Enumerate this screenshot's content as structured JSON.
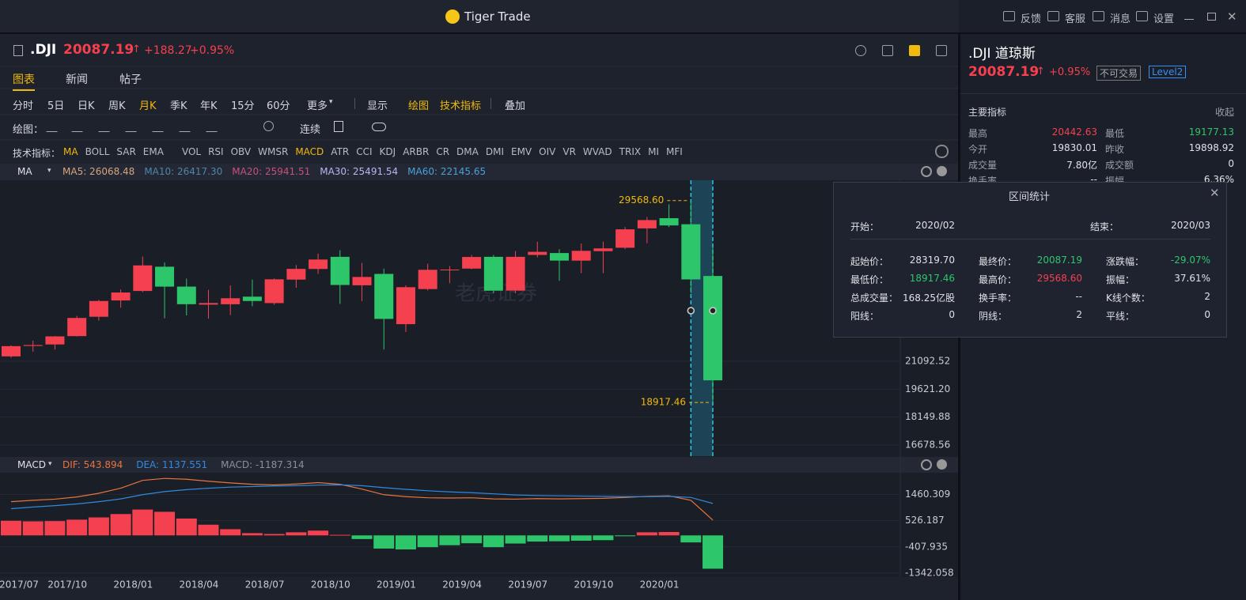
{
  "window": {
    "title": "Tiger Trade",
    "actions": [
      "反馈",
      "客服",
      "消息",
      "设置"
    ]
  },
  "quote": {
    "symbol": ".DJI",
    "price": "20087.19",
    "change": "+188.27",
    "change_pct": "+0.95%"
  },
  "tabs": [
    "图表",
    "新闻",
    "帖子"
  ],
  "selected_tab": 0,
  "periods": [
    "分时",
    "5日",
    "日K",
    "周K",
    "月K",
    "季K",
    "年K",
    "15分",
    "60分",
    "更多"
  ],
  "selected_period": 4,
  "view_menu": [
    "显示",
    "绘图",
    "技术指标",
    "叠加"
  ],
  "draw_tools": {
    "label": "绘图：",
    "continuous": "连续"
  },
  "indicators": {
    "label": "技术指标：",
    "items": [
      "MA",
      "BOLL",
      "SAR",
      "EMA",
      "VOL",
      "RSI",
      "OBV",
      "WMSR",
      "MACD",
      "ATR",
      "CCI",
      "KDJ",
      "ARBR",
      "CR",
      "DMA",
      "DMI",
      "EMV",
      "OIV",
      "VR",
      "WVAD",
      "TRIX",
      "MI",
      "MFI"
    ],
    "active": [
      0,
      8
    ]
  },
  "ma_legend": {
    "name": "MA",
    "items": [
      {
        "label": "MA5: 26068.48",
        "color": "#d6a57c"
      },
      {
        "label": "MA10: 26417.30",
        "color": "#4e86a8"
      },
      {
        "label": "MA20: 25941.51",
        "color": "#c8507a"
      },
      {
        "label": "MA30: 25491.54",
        "color": "#b9b6f0"
      },
      {
        "label": "MA60: 22145.65",
        "color": "#4aa0d8"
      }
    ]
  },
  "macd_legend": {
    "name": "MACD",
    "items": [
      {
        "label": "DIF: 543.894",
        "color": "#e8743b"
      },
      {
        "label": "DEA: 1137.551",
        "color": "#2f8ae0"
      },
      {
        "label": "MACD: -1187.314",
        "color": "#8a8f99"
      }
    ]
  },
  "watermark": "老虎证券",
  "chart_data": [
    {
      "type": "candlestick",
      "up_color": "#f5404f",
      "down_color": "#2ec66a",
      "categories": [
        "2017/07",
        null,
        null,
        "2017/10",
        null,
        null,
        "2018/01",
        null,
        null,
        "2018/04",
        null,
        null,
        "2018/07",
        null,
        null,
        "2018/10",
        null,
        null,
        "2019/01",
        null,
        null,
        "2019/04",
        null,
        null,
        "2019/07",
        null,
        null,
        "2019/10",
        null,
        null,
        "2020/01",
        null,
        null
      ],
      "open": [
        21350,
        21900,
        21980,
        22420,
        23440,
        24300,
        24800,
        26080,
        25030,
        24080,
        24100,
        24500,
        24160,
        25400,
        25960,
        26600,
        25100,
        25700,
        23050,
        24900,
        25900,
        25980,
        26600,
        24820,
        26700,
        26800,
        26400,
        26900,
        27080,
        28100,
        28640,
        28319.7,
        25590
      ],
      "high": [
        21930,
        22180,
        22420,
        23485,
        24330,
        24880,
        26617,
        26307,
        25450,
        24860,
        25090,
        25400,
        25460,
        26170,
        26770,
        26950,
        26280,
        25980,
        25100,
        26240,
        26110,
        26700,
        26700,
        26910,
        27400,
        27000,
        27300,
        27400,
        28170,
        28700,
        29373,
        29568.6,
        27100
      ],
      "low": [
        21280,
        21600,
        21710,
        22400,
        23240,
        23920,
        24740,
        23360,
        23510,
        23340,
        23530,
        24000,
        24070,
        24970,
        25700,
        24120,
        24270,
        21710,
        22640,
        24830,
        25210,
        25950,
        24680,
        24680,
        26570,
        25340,
        25740,
        25740,
        27010,
        27320,
        28170,
        24680,
        18917.46
      ],
      "close": [
        21891,
        21948,
        22405,
        23377,
        24272,
        24719,
        26149,
        25029,
        24103,
        24163,
        24416,
        24271,
        25415,
        25965,
        26458,
        25116,
        25538,
        23327,
        24999,
        25916,
        25929,
        26593,
        24815,
        26600,
        26864,
        26403,
        26917,
        27046,
        28051,
        28538,
        28256,
        25409,
        20087.19
      ],
      "ylim": [
        16090,
        30640
      ],
      "yticks": [
        21092.52,
        {
          "value": 19621.2,
          "label": "19621.20"
        },
        18149.88,
        16678.56
      ],
      "grid": true,
      "annotations": [
        {
          "value": 29568.6,
          "label": "29568.60",
          "kind": "high"
        },
        {
          "value": 18917.46,
          "label": "18917.46",
          "kind": "low"
        }
      ]
    },
    {
      "type": "macd",
      "ylim": [
        -1485,
        2232
      ],
      "yticks": [
        1460.309,
        526.187,
        -407.935,
        -1342.058
      ],
      "series": [
        {
          "name": "MACD",
          "values": [
            520,
            500,
            510,
            560,
            640,
            760,
            920,
            840,
            600,
            380,
            220,
            80,
            50,
            110,
            170,
            20,
            -130,
            -470,
            -500,
            -420,
            -350,
            -280,
            -420,
            -290,
            -220,
            -210,
            -190,
            -170,
            -30,
            110,
            120,
            -250,
            -1187.314
          ]
        },
        {
          "name": "DIF",
          "color": "#e8743b",
          "values": [
            1200,
            1250,
            1290,
            1370,
            1500,
            1680,
            1960,
            2030,
            2000,
            1930,
            1870,
            1820,
            1800,
            1830,
            1880,
            1820,
            1650,
            1450,
            1380,
            1340,
            1330,
            1340,
            1300,
            1290,
            1310,
            1300,
            1310,
            1320,
            1350,
            1390,
            1410,
            1250,
            543.894
          ]
        },
        {
          "name": "DEA",
          "color": "#2f8ae0",
          "values": [
            950,
            1010,
            1060,
            1120,
            1200,
            1300,
            1450,
            1560,
            1630,
            1680,
            1720,
            1740,
            1760,
            1770,
            1790,
            1800,
            1770,
            1700,
            1640,
            1590,
            1550,
            1520,
            1480,
            1440,
            1420,
            1410,
            1400,
            1390,
            1380,
            1380,
            1390,
            1350,
            1137.551
          ]
        }
      ]
    }
  ],
  "side": {
    "name": ".DJI 道琼斯",
    "price": "20087.19",
    "change_pct": "+0.95%",
    "badges": [
      "不可交易",
      "Level2"
    ],
    "section": "主要指标",
    "collapse": "收起",
    "rows": [
      [
        {
          "label": "最高",
          "value": "20442.63",
          "color": "#f5404f"
        },
        {
          "label": "最低",
          "value": "19177.13",
          "color": "#2ec66a"
        }
      ],
      [
        {
          "label": "今开",
          "value": "19830.01"
        },
        {
          "label": "昨收",
          "value": "19898.92"
        }
      ],
      [
        {
          "label": "成交量",
          "value": "7.80亿"
        },
        {
          "label": "成交额",
          "value": "0"
        }
      ],
      [
        {
          "label": "换手率",
          "value": "--"
        },
        {
          "label": "振幅",
          "value": "6.36%"
        }
      ]
    ]
  },
  "popup": {
    "title": "区间统计",
    "start_label": "开始：",
    "start": "2020/02",
    "end_label": "结束：",
    "end": "2020/03",
    "rows": [
      [
        {
          "label": "起始价：",
          "value": "28319.70"
        },
        {
          "label": "最终价：",
          "value": "20087.19",
          "color": "#2ec66a"
        },
        {
          "label": "涨跌幅：",
          "value": "-29.07%",
          "color": "#2ec66a"
        }
      ],
      [
        {
          "label": "最低价：",
          "value": "18917.46",
          "color": "#2ec66a"
        },
        {
          "label": "最高价：",
          "value": "29568.60",
          "color": "#f5404f"
        },
        {
          "label": "振幅：",
          "value": "37.61%"
        }
      ],
      [
        {
          "label": "总成交量：",
          "value": "168.25亿股"
        },
        {
          "label": "换手率：",
          "value": "--"
        },
        {
          "label": "K线个数：",
          "value": "2"
        }
      ],
      [
        {
          "label": "阳线：",
          "value": "0"
        },
        {
          "label": "阴线：",
          "value": "2"
        },
        {
          "label": "平线：",
          "value": "0"
        }
      ]
    ]
  }
}
